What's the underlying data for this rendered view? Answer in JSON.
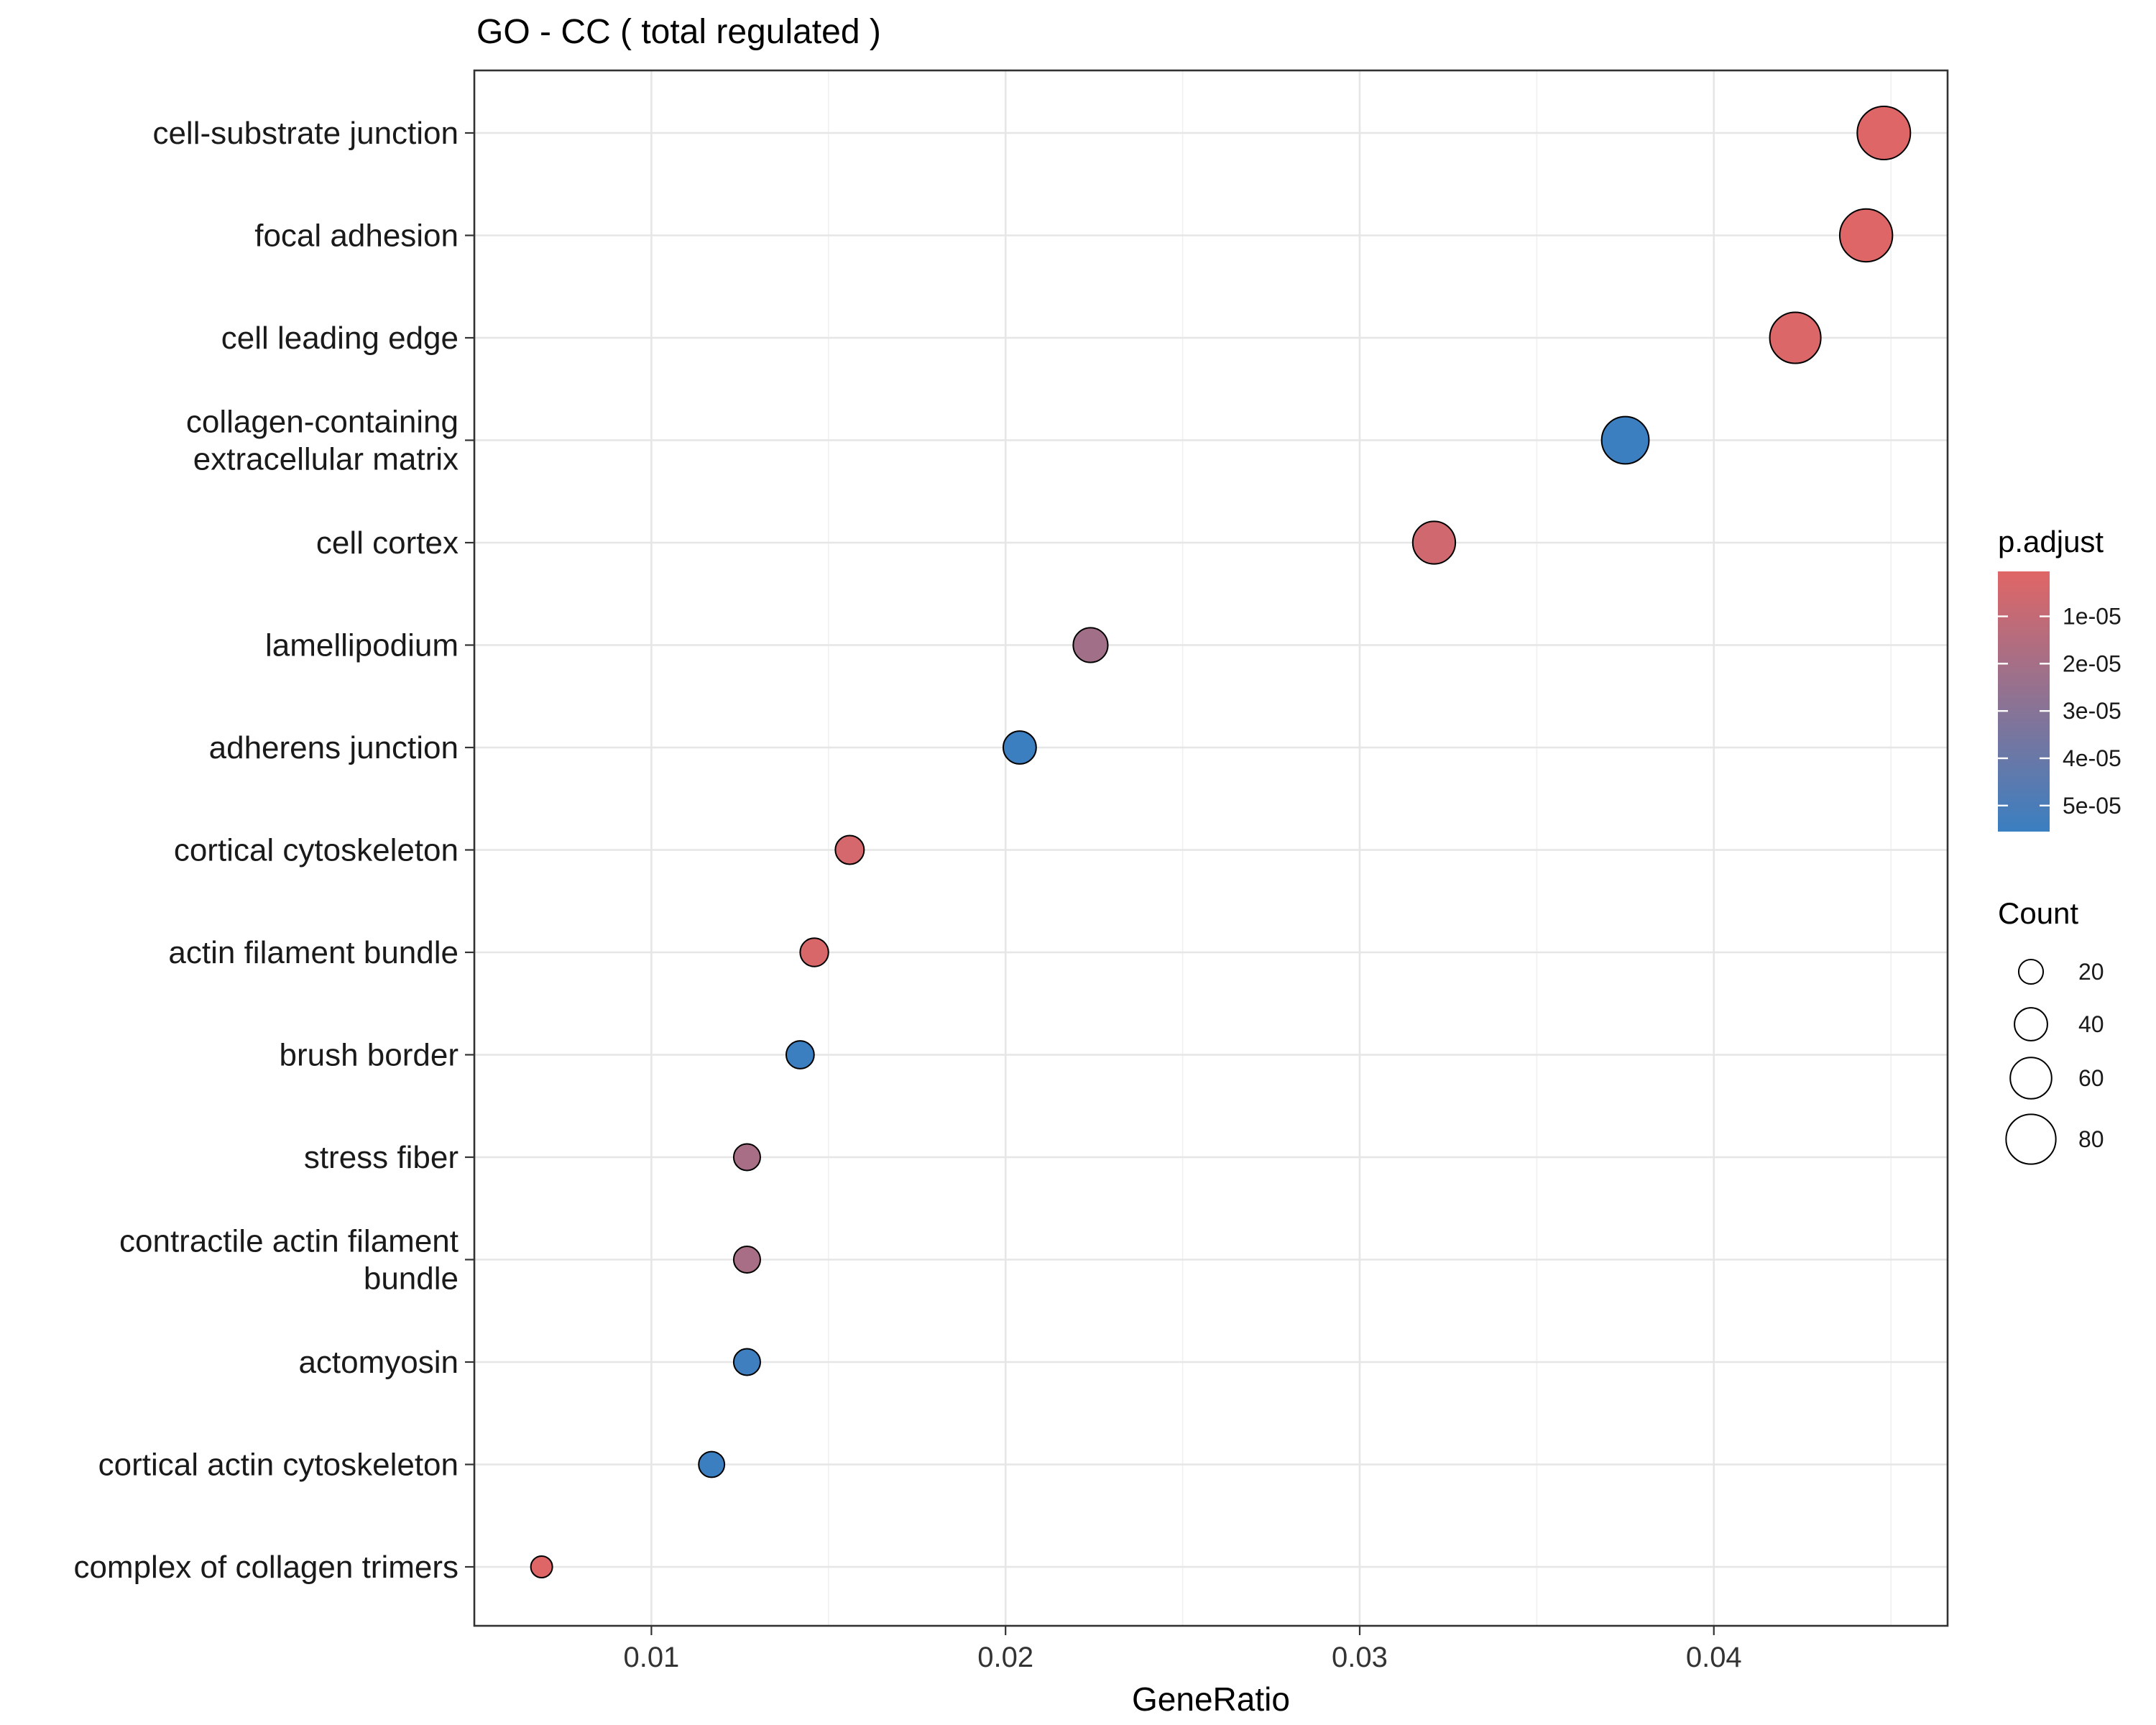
{
  "chart_data": {
    "type": "scatter",
    "title": "GO - CC ( total regulated )",
    "xlabel": "GeneRatio",
    "ylabel": "",
    "xlim": [
      0.005,
      0.0466
    ],
    "xticks": [
      0.01,
      0.02,
      0.03,
      0.04
    ],
    "xtick_labels": [
      "0.01",
      "0.02",
      "0.03",
      "0.04"
    ],
    "grid": true,
    "legend_position": "right",
    "points": [
      {
        "term": [
          "cell-substrate junction"
        ],
        "gene_ratio": 0.0448,
        "count": 88,
        "p_adjust": 1e-06
      },
      {
        "term": [
          "focal adhesion"
        ],
        "gene_ratio": 0.0443,
        "count": 87,
        "p_adjust": 1e-06
      },
      {
        "term": [
          "cell leading edge"
        ],
        "gene_ratio": 0.0423,
        "count": 83,
        "p_adjust": 2e-06
      },
      {
        "term": [
          "collagen-containing",
          "extracellular matrix"
        ],
        "gene_ratio": 0.0375,
        "count": 74,
        "p_adjust": 5.5e-05
      },
      {
        "term": [
          "cell cortex"
        ],
        "gene_ratio": 0.0321,
        "count": 63,
        "p_adjust": 6e-06
      },
      {
        "term": [
          "lamellipodium"
        ],
        "gene_ratio": 0.0224,
        "count": 44,
        "p_adjust": 2.1e-05
      },
      {
        "term": [
          "adherens junction"
        ],
        "gene_ratio": 0.0204,
        "count": 40,
        "p_adjust": 5.5e-05
      },
      {
        "term": [
          "cortical cytoskeleton"
        ],
        "gene_ratio": 0.0156,
        "count": 30,
        "p_adjust": 4e-06
      },
      {
        "term": [
          "actin filament bundle"
        ],
        "gene_ratio": 0.0146,
        "count": 29,
        "p_adjust": 3e-06
      },
      {
        "term": [
          "brush border"
        ],
        "gene_ratio": 0.0142,
        "count": 28,
        "p_adjust": 5.5e-05
      },
      {
        "term": [
          "stress fiber"
        ],
        "gene_ratio": 0.0127,
        "count": 25,
        "p_adjust": 1.9e-05
      },
      {
        "term": [
          "contractile actin filament",
          "bundle"
        ],
        "gene_ratio": 0.0127,
        "count": 25,
        "p_adjust": 1.9e-05
      },
      {
        "term": [
          "actomyosin"
        ],
        "gene_ratio": 0.0127,
        "count": 25,
        "p_adjust": 5.4e-05
      },
      {
        "term": [
          "cortical actin cytoskeleton"
        ],
        "gene_ratio": 0.0117,
        "count": 23,
        "p_adjust": 5.5e-05
      },
      {
        "term": [
          "complex of collagen trimers"
        ],
        "gene_ratio": 0.0069,
        "count": 13,
        "p_adjust": 1e-06
      }
    ],
    "color_legend": {
      "title": "p.adjust",
      "min": 5e-07,
      "max": 5.55e-05,
      "low_color": "#e06666",
      "high_color": "#3a7fc1",
      "ticks": [
        1e-05,
        2e-05,
        3e-05,
        4e-05,
        5e-05
      ],
      "tick_labels": [
        "1e-05",
        "2e-05",
        "3e-05",
        "4e-05",
        "5e-05"
      ]
    },
    "size_legend": {
      "title": "Count",
      "values": [
        20,
        40,
        60,
        80
      ],
      "labels": [
        "20",
        "40",
        "60",
        "80"
      ]
    }
  }
}
